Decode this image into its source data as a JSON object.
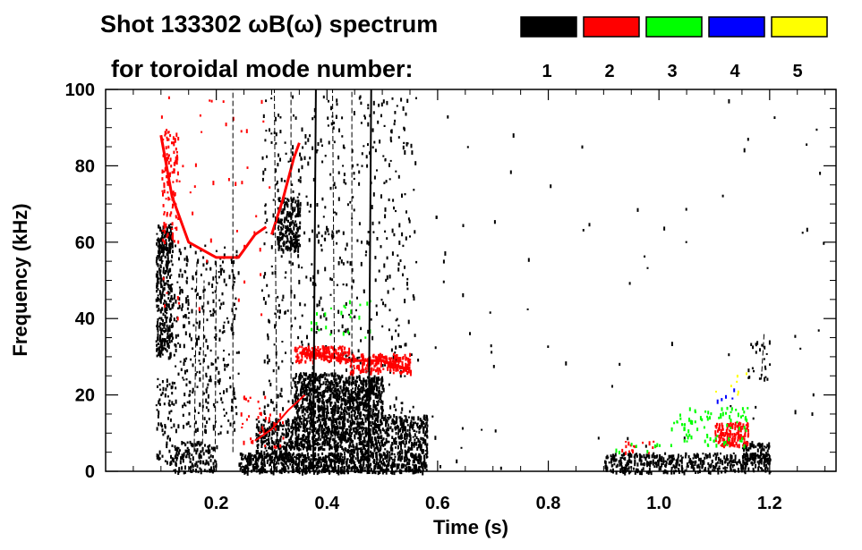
{
  "chart_data": {
    "type": "heatmap",
    "title_line1": "Shot 133302 ωB(ω) spectrum",
    "title_line2": "for toroidal mode number:",
    "xlabel": "Time (s)",
    "ylabel": "Frequency (kHz)",
    "xlim": [
      0.0,
      1.32
    ],
    "ylim": [
      0,
      100
    ],
    "xticks": [
      0.2,
      0.4,
      0.6,
      0.8,
      1.0,
      1.2
    ],
    "xtick_labels": [
      "0.2",
      "0.4",
      "0.6",
      "0.8",
      "1.0",
      "1.2"
    ],
    "yticks": [
      0,
      20,
      40,
      60,
      80,
      100
    ],
    "ytick_labels": [
      "0",
      "20",
      "40",
      "60",
      "80",
      "100"
    ],
    "legend": [
      {
        "label": "1",
        "color": "#000000"
      },
      {
        "label": "2",
        "color": "#ff0000"
      },
      {
        "label": "3",
        "color": "#00ff00"
      },
      {
        "label": "4",
        "color": "#0000ff"
      },
      {
        "label": "5",
        "color": "#ffff00"
      }
    ],
    "regions": [
      {
        "mode": 1,
        "t": [
          0.09,
          0.12
        ],
        "f": [
          30,
          65
        ],
        "density": 0.55
      },
      {
        "mode": 1,
        "t": [
          0.09,
          0.12
        ],
        "f": [
          2,
          25
        ],
        "density": 0.15
      },
      {
        "mode": 1,
        "t": [
          0.12,
          0.2
        ],
        "f": [
          0,
          8
        ],
        "density": 0.35
      },
      {
        "mode": 1,
        "t": [
          0.12,
          0.24
        ],
        "f": [
          10,
          60
        ],
        "density": 0.08
      },
      {
        "mode": 1,
        "t": [
          0.24,
          0.58
        ],
        "f": [
          0,
          5
        ],
        "density": 0.75
      },
      {
        "mode": 1,
        "t": [
          0.27,
          0.34
        ],
        "f": [
          3,
          14
        ],
        "density": 0.5
      },
      {
        "mode": 1,
        "t": [
          0.34,
          0.43
        ],
        "f": [
          6,
          26
        ],
        "density": 0.7
      },
      {
        "mode": 1,
        "t": [
          0.43,
          0.5
        ],
        "f": [
          5,
          25
        ],
        "density": 0.7
      },
      {
        "mode": 1,
        "t": [
          0.5,
          0.58
        ],
        "f": [
          5,
          15
        ],
        "density": 0.5
      },
      {
        "mode": 1,
        "t": [
          0.31,
          0.35
        ],
        "f": [
          58,
          72
        ],
        "density": 0.55
      },
      {
        "mode": 1,
        "t": [
          0.28,
          0.56
        ],
        "f": [
          15,
          100
        ],
        "density": 0.035
      },
      {
        "mode": 1,
        "t": [
          0.9,
          1.2
        ],
        "f": [
          0,
          5
        ],
        "density": 0.45
      },
      {
        "mode": 1,
        "t": [
          1.15,
          1.2
        ],
        "f": [
          2,
          8
        ],
        "density": 0.5
      },
      {
        "mode": 1,
        "t": [
          1.16,
          1.2
        ],
        "f": [
          24,
          36
        ],
        "density": 0.08
      },
      {
        "mode": 1,
        "t": [
          0.5,
          1.3
        ],
        "f": [
          0,
          100
        ],
        "density": 0.0015
      },
      {
        "mode": 2,
        "t": [
          0.1,
          0.13
        ],
        "f": [
          60,
          90
        ],
        "density": 0.18
      },
      {
        "mode": 2,
        "t": [
          0.34,
          0.44
        ],
        "f": [
          29,
          33
        ],
        "density": 0.7
      },
      {
        "mode": 2,
        "t": [
          0.44,
          0.55
        ],
        "f": [
          26,
          31
        ],
        "density": 0.6
      },
      {
        "mode": 2,
        "t": [
          1.1,
          1.16
        ],
        "f": [
          7,
          13
        ],
        "density": 0.6
      },
      {
        "mode": 2,
        "t": [
          0.93,
          1.0
        ],
        "f": [
          5,
          8
        ],
        "density": 0.12
      },
      {
        "mode": 2,
        "t": [
          0.24,
          0.32
        ],
        "f": [
          6,
          20
        ],
        "density": 0.05
      },
      {
        "mode": 2,
        "t": [
          0.1,
          0.3
        ],
        "f": [
          40,
          100
        ],
        "density": 0.006
      },
      {
        "mode": 3,
        "t": [
          1.02,
          1.16
        ],
        "f": [
          7,
          17
        ],
        "density": 0.09
      },
      {
        "mode": 3,
        "t": [
          0.36,
          0.48
        ],
        "f": [
          35,
          45
        ],
        "density": 0.03
      },
      {
        "mode": 3,
        "t": [
          0.92,
          1.0
        ],
        "f": [
          5,
          8
        ],
        "density": 0.05
      },
      {
        "mode": 4,
        "t": [
          1.1,
          1.14
        ],
        "f": [
          18,
          22
        ],
        "density": 0.05
      },
      {
        "mode": 5,
        "t": [
          1.1,
          1.16
        ],
        "f": [
          20,
          26
        ],
        "density": 0.03
      }
    ],
    "ridges": [
      {
        "mode": 2,
        "points": [
          [
            0.1,
            88
          ],
          [
            0.12,
            72
          ],
          [
            0.15,
            60
          ],
          [
            0.2,
            56
          ],
          [
            0.24,
            56
          ],
          [
            0.27,
            62
          ],
          [
            0.29,
            64
          ]
        ],
        "width": 3
      },
      {
        "mode": 2,
        "points": [
          [
            0.3,
            62
          ],
          [
            0.32,
            71
          ],
          [
            0.34,
            82
          ],
          [
            0.35,
            86
          ]
        ],
        "width": 3
      },
      {
        "mode": 2,
        "points": [
          [
            0.35,
            31
          ],
          [
            0.4,
            30
          ],
          [
            0.45,
            29
          ],
          [
            0.5,
            29
          ],
          [
            0.54,
            27
          ]
        ],
        "width": 3
      },
      {
        "mode": 2,
        "points": [
          [
            0.27,
            8
          ],
          [
            0.3,
            11
          ],
          [
            0.33,
            16
          ],
          [
            0.36,
            20
          ]
        ],
        "width": 2
      },
      {
        "mode": 1,
        "points": [
          [
            0.375,
            0
          ],
          [
            0.38,
            100
          ]
        ],
        "width": 2
      },
      {
        "mode": 1,
        "points": [
          [
            0.475,
            0
          ],
          [
            0.48,
            100
          ]
        ],
        "width": 2
      },
      {
        "mode": 1,
        "points": [
          [
            0.31,
            0
          ],
          [
            0.305,
            100
          ]
        ],
        "width": 1
      },
      {
        "mode": 1,
        "points": [
          [
            0.335,
            20
          ],
          [
            0.335,
            100
          ]
        ],
        "width": 1
      },
      {
        "mode": 1,
        "points": [
          [
            0.415,
            0
          ],
          [
            0.41,
            100
          ]
        ],
        "width": 1
      },
      {
        "mode": 1,
        "points": [
          [
            0.445,
            20
          ],
          [
            0.445,
            100
          ]
        ],
        "width": 1
      },
      {
        "mode": 1,
        "points": [
          [
            0.16,
            5
          ],
          [
            0.165,
            55
          ]
        ],
        "width": 1
      },
      {
        "mode": 1,
        "points": [
          [
            0.175,
            5
          ],
          [
            0.178,
            50
          ]
        ],
        "width": 1
      },
      {
        "mode": 1,
        "points": [
          [
            0.198,
            5
          ],
          [
            0.2,
            55
          ]
        ],
        "width": 1
      },
      {
        "mode": 1,
        "points": [
          [
            0.23,
            5
          ],
          [
            0.23,
            100
          ]
        ],
        "width": 1
      },
      {
        "mode": 1,
        "points": [
          [
            1.185,
            24
          ],
          [
            1.19,
            36
          ]
        ],
        "width": 1
      }
    ]
  }
}
